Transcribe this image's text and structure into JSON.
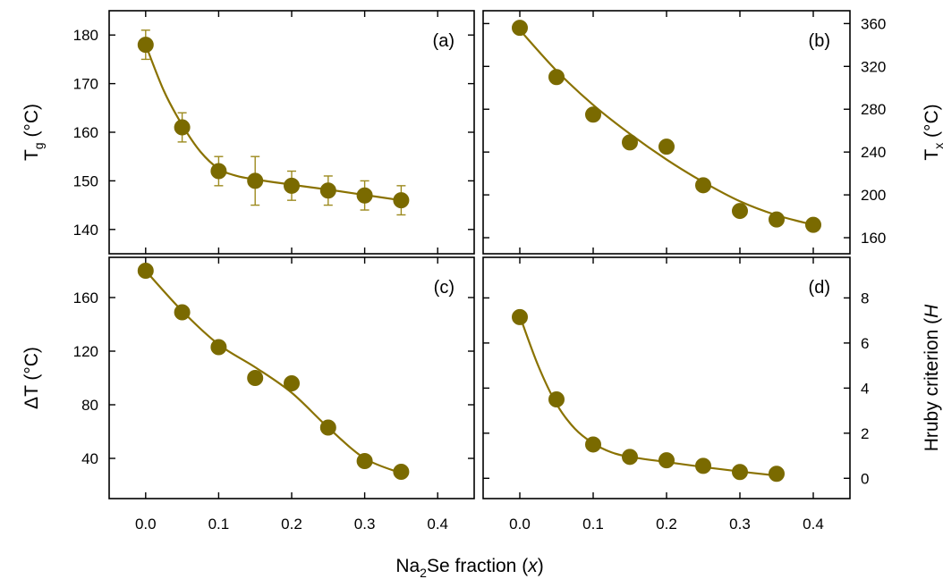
{
  "figure": {
    "xlabel_main": "Na",
    "xlabel_sub": "2",
    "xlabel_mid": "Se fraction (",
    "xlabel_var": "x",
    "xlabel_end": ")"
  },
  "colors": {
    "marker": "#7a6a00",
    "line": "#8a7200",
    "errorbar": "#9c8a1e",
    "axis": "#000000"
  },
  "chart_data": [
    {
      "id": "a",
      "type": "scatter",
      "tag": "(a)",
      "ylabel_main": "T",
      "ylabel_sub": "g",
      "ylabel_rest": " (°C)",
      "x": [
        0.0,
        0.05,
        0.1,
        0.15,
        0.2,
        0.25,
        0.3,
        0.35
      ],
      "y": [
        178,
        161,
        152,
        150,
        149,
        148,
        147,
        146
      ],
      "yerr": [
        3,
        3,
        3,
        5,
        3,
        3,
        3,
        3
      ],
      "fit": [
        [
          0.0,
          178
        ],
        [
          0.025,
          168.5
        ],
        [
          0.05,
          161.5
        ],
        [
          0.075,
          156
        ],
        [
          0.1,
          152.5
        ],
        [
          0.125,
          151
        ],
        [
          0.15,
          150.3
        ],
        [
          0.2,
          149.2
        ],
        [
          0.25,
          148.2
        ],
        [
          0.3,
          147.1
        ],
        [
          0.35,
          146
        ]
      ],
      "xlim": [
        -0.05,
        0.45
      ],
      "ylim": [
        135,
        185
      ],
      "yticks": [
        140,
        150,
        160,
        170,
        180
      ],
      "ytick_labels": [
        "140",
        "150",
        "160",
        "170",
        "180"
      ],
      "yaxis_side": "left"
    },
    {
      "id": "b",
      "type": "scatter",
      "tag": "(b)",
      "ylabel_main": "T",
      "ylabel_sub": "x",
      "ylabel_rest": " (°C)",
      "x": [
        0.0,
        0.05,
        0.1,
        0.15,
        0.2,
        0.25,
        0.3,
        0.35,
        0.4
      ],
      "y": [
        356,
        310,
        275,
        249,
        245,
        209,
        185,
        177,
        172
      ],
      "fit": [
        [
          0.0,
          354
        ],
        [
          0.05,
          316
        ],
        [
          0.1,
          284
        ],
        [
          0.15,
          257
        ],
        [
          0.2,
          233
        ],
        [
          0.25,
          212
        ],
        [
          0.3,
          194
        ],
        [
          0.35,
          181
        ],
        [
          0.4,
          172
        ]
      ],
      "xlim": [
        -0.05,
        0.45
      ],
      "ylim": [
        145,
        372
      ],
      "yticks": [
        160,
        200,
        240,
        280,
        320,
        360
      ],
      "ytick_labels": [
        "160",
        "200",
        "240",
        "280",
        "320",
        "360"
      ],
      "yaxis_side": "right"
    },
    {
      "id": "c",
      "type": "scatter",
      "tag": "(c)",
      "ylabel_main": "ΔT (°C)",
      "ylabel_sub": "",
      "ylabel_rest": "",
      "x": [
        0.0,
        0.05,
        0.1,
        0.15,
        0.2,
        0.25,
        0.3,
        0.35
      ],
      "y": [
        180,
        149,
        123,
        100,
        96,
        63,
        38,
        30
      ],
      "fit": [
        [
          0.0,
          180
        ],
        [
          0.05,
          150
        ],
        [
          0.1,
          125
        ],
        [
          0.15,
          108
        ],
        [
          0.2,
          89
        ],
        [
          0.25,
          63
        ],
        [
          0.3,
          40
        ],
        [
          0.35,
          29
        ]
      ],
      "xlim": [
        -0.05,
        0.45
      ],
      "ylim": [
        10,
        190
      ],
      "yticks": [
        40,
        80,
        120,
        160
      ],
      "ytick_labels": [
        "40",
        "80",
        "120",
        "160"
      ],
      "yaxis_side": "left"
    },
    {
      "id": "d",
      "type": "scatter",
      "tag": "(d)",
      "ylabel_main": "Hruby criterion (",
      "ylabel_sub": "",
      "ylabel_rest": "H",
      "x": [
        0.0,
        0.05,
        0.1,
        0.15,
        0.2,
        0.25,
        0.3,
        0.35
      ],
      "y": [
        7.15,
        3.5,
        1.5,
        0.95,
        0.8,
        0.55,
        0.28,
        0.2
      ],
      "fit": [
        [
          0.0,
          7.2
        ],
        [
          0.025,
          5.0
        ],
        [
          0.05,
          3.3
        ],
        [
          0.075,
          2.2
        ],
        [
          0.1,
          1.55
        ],
        [
          0.125,
          1.15
        ],
        [
          0.15,
          0.95
        ],
        [
          0.2,
          0.72
        ],
        [
          0.25,
          0.5
        ],
        [
          0.3,
          0.3
        ],
        [
          0.35,
          0.12
        ]
      ],
      "xlim": [
        -0.05,
        0.45
      ],
      "ylim": [
        -0.9,
        9.8
      ],
      "yticks": [
        0,
        2,
        4,
        6,
        8
      ],
      "ytick_labels": [
        "0",
        "2",
        "4",
        "6",
        "8"
      ],
      "yaxis_side": "right"
    }
  ],
  "xaxis": {
    "ticks": [
      0.0,
      0.1,
      0.2,
      0.3,
      0.4
    ],
    "tick_labels": [
      "0.0",
      "0.1",
      "0.2",
      "0.3",
      "0.4"
    ]
  }
}
